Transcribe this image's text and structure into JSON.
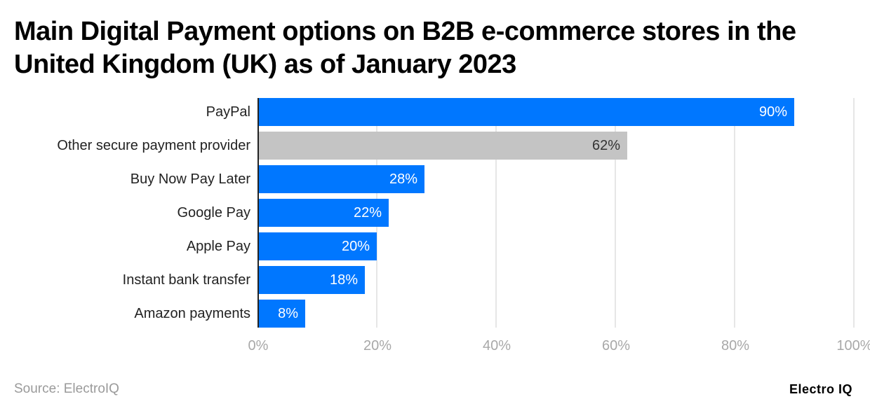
{
  "chart_data": {
    "type": "bar",
    "orientation": "horizontal",
    "title": "Main Digital Payment options on B2B e-commerce stores in the United Kingdom (UK) as of January 2023",
    "categories": [
      "PayPal",
      "Other secure payment provider",
      "Buy Now Pay Later",
      "Google Pay",
      "Apple Pay",
      "Instant bank transfer",
      "Amazon payments"
    ],
    "values": [
      90,
      62,
      28,
      22,
      20,
      18,
      8
    ],
    "value_labels": [
      "90%",
      "62%",
      "28%",
      "22%",
      "20%",
      "18%",
      "8%"
    ],
    "bar_colors": [
      "#0077ff",
      "#c4c4c4",
      "#0077ff",
      "#0077ff",
      "#0077ff",
      "#0077ff",
      "#0077ff"
    ],
    "xlabel": "",
    "ylabel": "",
    "xlim": [
      0,
      100
    ],
    "x_ticks": [
      "0%",
      "20%",
      "40%",
      "60%",
      "80%",
      "100%"
    ],
    "grid": true,
    "legend": "none"
  },
  "footer": {
    "source": "Source: ElectroIQ",
    "brand": "Electro IQ"
  },
  "colors": {
    "primary": "#0077ff",
    "highlight_other": "#c4c4c4",
    "grid": "#e6e6e6",
    "tick_text": "#a8a8a8"
  }
}
